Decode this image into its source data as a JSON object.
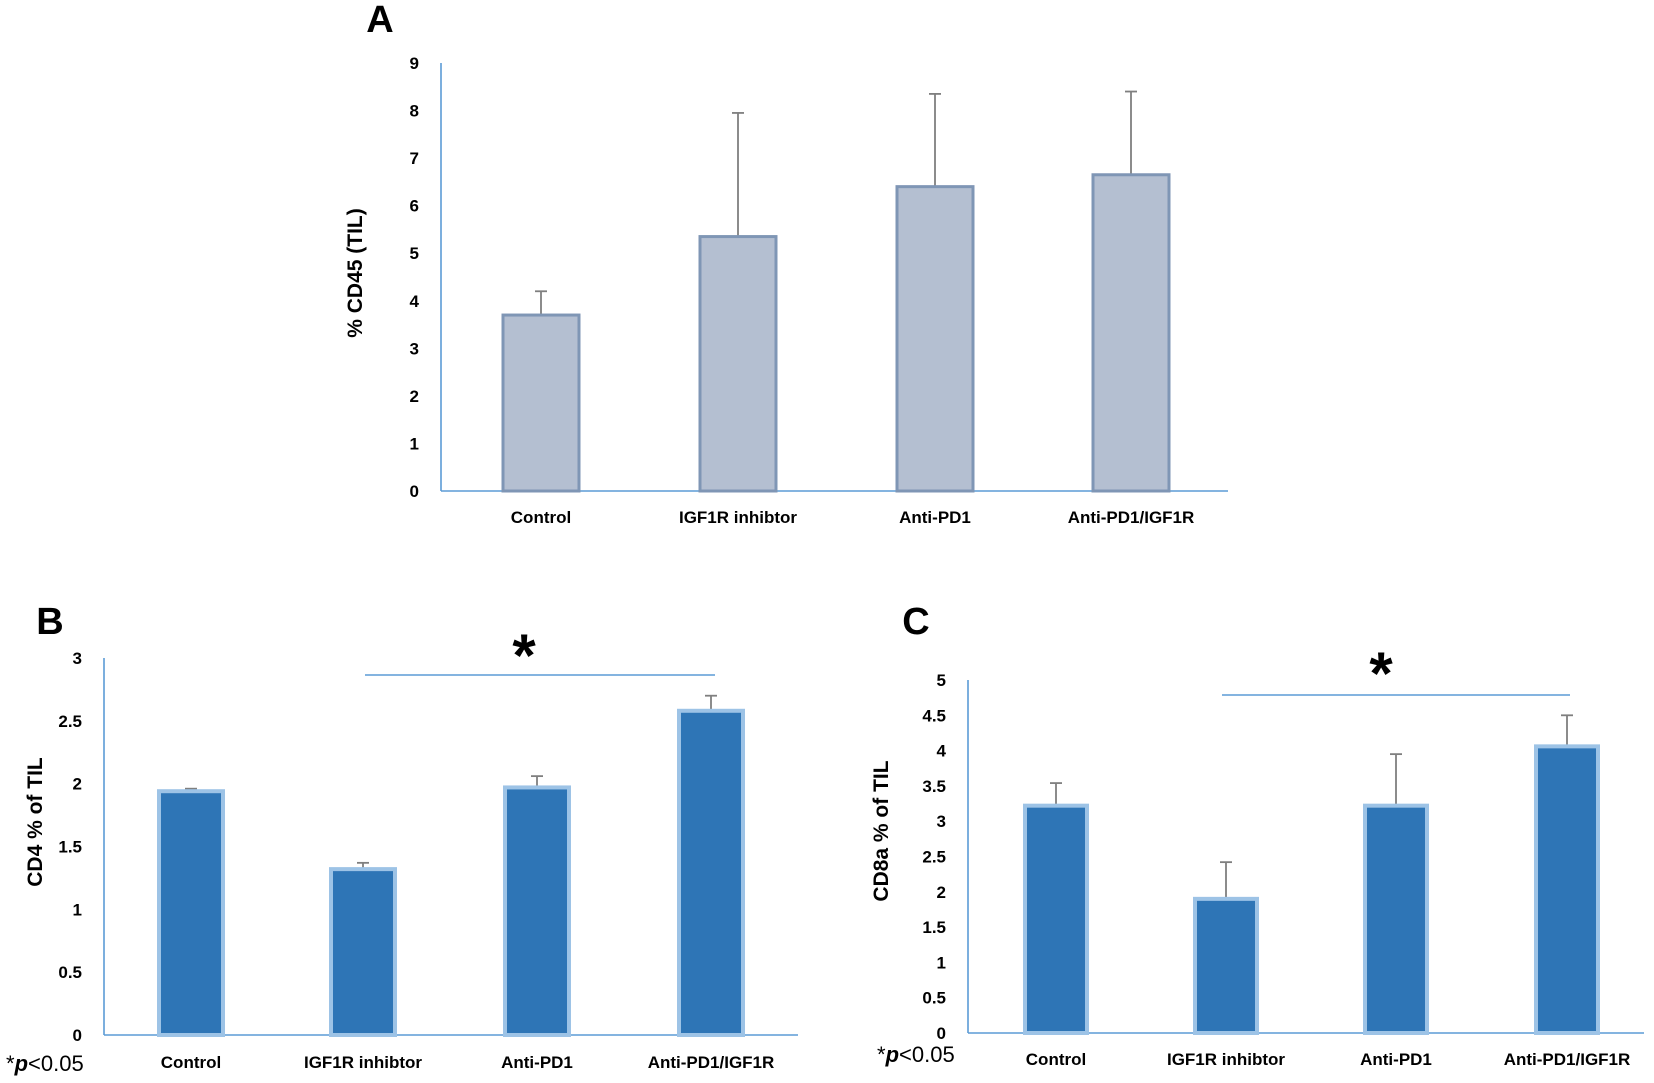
{
  "colors": {
    "axis": "#5b9bd5",
    "panelA_fill": "#b4bfd1",
    "panelA_stroke": "#7f96b5",
    "panelBC_fill": "#2e75b6",
    "panelBC_stroke": "#9dc3e6",
    "errorbar": "#7f7f7f",
    "sig_line": "#5b9bd5"
  },
  "chart_data": [
    {
      "panel": "A",
      "type": "bar",
      "categories": [
        "Control",
        "IGF1R inhibtor",
        "Anti-PD1",
        "Anti-PD1/IGF1R"
      ],
      "values": [
        3.7,
        5.35,
        6.4,
        6.65
      ],
      "error_upper": [
        0.5,
        2.6,
        1.95,
        1.75
      ],
      "ylabel": "% CD45 (TIL)",
      "ylim": [
        0,
        9
      ],
      "yticks": [
        "0",
        "1",
        "2",
        "3",
        "4",
        "5",
        "6",
        "7",
        "8",
        "9"
      ],
      "significance": null,
      "note": ""
    },
    {
      "panel": "B",
      "type": "bar",
      "categories": [
        "Control",
        "IGF1R inhibtor",
        "Anti-PD1",
        "Anti-PD1/IGF1R"
      ],
      "values": [
        1.94,
        1.32,
        1.97,
        2.58
      ],
      "error_upper": [
        0.02,
        0.05,
        0.09,
        0.12
      ],
      "ylabel": "CD4 % of TIL",
      "ylim": [
        0,
        3
      ],
      "yticks": [
        "0",
        "0.5",
        "1",
        "1.5",
        "2",
        "2.5",
        "3"
      ],
      "significance": {
        "from_category": 1,
        "to_category": 3,
        "label": "*"
      },
      "note_prefix": "*",
      "note_p": "p",
      "note_suffix": "<0.05"
    },
    {
      "panel": "C",
      "type": "bar",
      "categories": [
        "Control",
        "IGF1R inhibtor",
        "Anti-PD1",
        "Anti-PD1/IGF1R"
      ],
      "values": [
        3.22,
        1.9,
        3.22,
        4.06
      ],
      "error_upper": [
        0.32,
        0.52,
        0.73,
        0.44
      ],
      "ylabel": "CD8a % of TIL",
      "ylim": [
        0,
        5
      ],
      "yticks": [
        "0",
        "0.5",
        "1",
        "1.5",
        "2",
        "2.5",
        "3",
        "3.5",
        "4",
        "4.5",
        "5"
      ],
      "significance": {
        "from_category": 1,
        "to_category": 3,
        "label": "*"
      },
      "note_prefix": "*",
      "note_p": "p",
      "note_suffix": "<0.05"
    }
  ]
}
